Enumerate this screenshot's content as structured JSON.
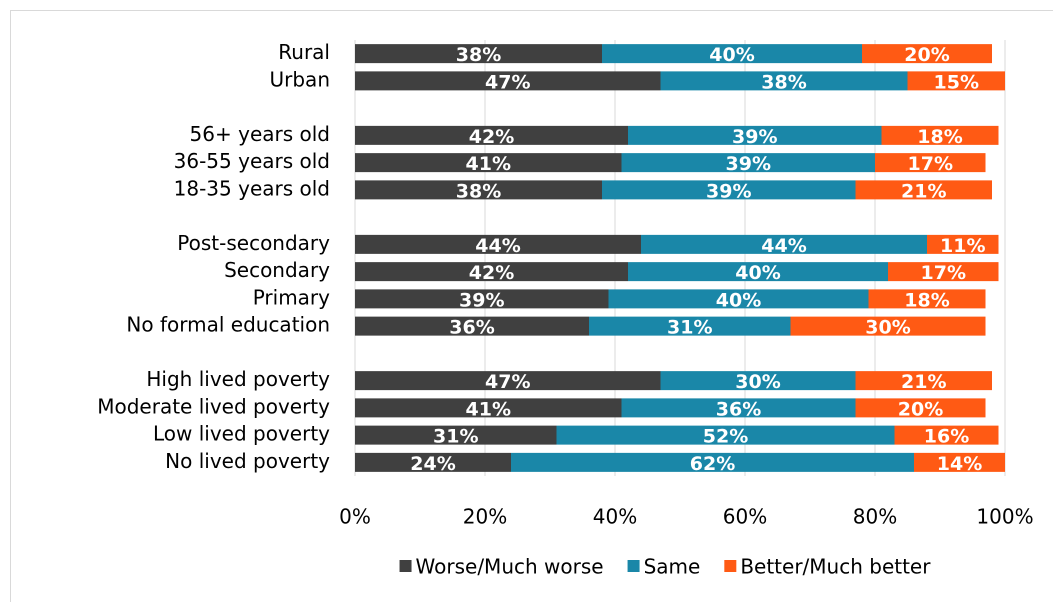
{
  "chart_data": {
    "type": "stacked-bar-horizontal",
    "categories": [
      "Rural",
      "Urban",
      null,
      "56+ years old",
      "36-55 years old",
      "18-35 years old",
      null,
      "Post-secondary",
      "Secondary",
      "Primary",
      "No formal education",
      null,
      "High lived poverty",
      "Moderate lived poverty",
      "Low lived poverty",
      "No lived poverty"
    ],
    "series": [
      {
        "name": "Worse/Much worse",
        "color": "#404040",
        "values": [
          38,
          47,
          null,
          42,
          41,
          38,
          null,
          44,
          42,
          39,
          36,
          null,
          47,
          41,
          31,
          24
        ],
        "value_labels": [
          "38%",
          "47%",
          null,
          "42%",
          "41%",
          "38%",
          null,
          "44%",
          "42%",
          "39%",
          "36%",
          null,
          "47%",
          "41%",
          "31%",
          "24%"
        ]
      },
      {
        "name": "Same",
        "color": "#1a87a8",
        "values": [
          40,
          38,
          null,
          39,
          39,
          39,
          null,
          44,
          40,
          40,
          31,
          null,
          30,
          36,
          52,
          62
        ],
        "value_labels": [
          "40%",
          "38%",
          null,
          "39%",
          "39%",
          "39%",
          null,
          "44%",
          "40%",
          "40%",
          "31%",
          null,
          "30%",
          "36%",
          "52%",
          "62%"
        ]
      },
      {
        "name": "Better/Much better",
        "color": "#ff5a14",
        "values": [
          20,
          15,
          null,
          18,
          17,
          21,
          null,
          11,
          17,
          18,
          30,
          null,
          21,
          20,
          16,
          14
        ],
        "value_labels": [
          "20%",
          "15%",
          null,
          "18%",
          "17%",
          "21%",
          null,
          "11%",
          "17%",
          "18%",
          "30%",
          null,
          "21%",
          "20%",
          "16%",
          "14%"
        ]
      }
    ],
    "xlim": [
      0,
      100
    ],
    "xticks": [
      {
        "value": 0,
        "label": "0%"
      },
      {
        "value": 20,
        "label": "20%"
      },
      {
        "value": 40,
        "label": "40%"
      },
      {
        "value": 60,
        "label": "60%"
      },
      {
        "value": 80,
        "label": "80%"
      },
      {
        "value": 100,
        "label": "100%"
      }
    ],
    "grid": true,
    "legend": "bottom"
  }
}
